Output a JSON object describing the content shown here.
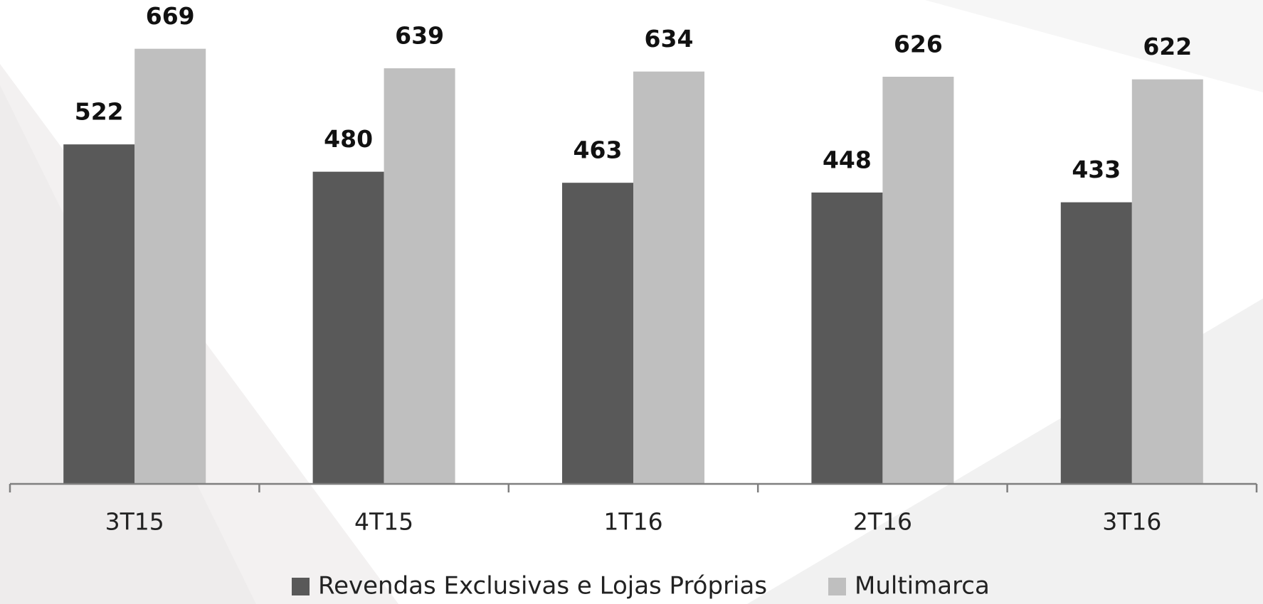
{
  "chart_data": {
    "type": "bar",
    "categories": [
      "3T15",
      "4T15",
      "1T16",
      "2T16",
      "3T16"
    ],
    "series": [
      {
        "name": "Revendas Exclusivas e Lojas Próprias",
        "color": "#595959",
        "values": [
          522,
          480,
          463,
          448,
          433
        ]
      },
      {
        "name": "Multimarca",
        "color": "#bfbfbf",
        "values": [
          669,
          639,
          634,
          626,
          622
        ]
      }
    ],
    "ylim": [
      0,
      744
    ],
    "legend": "bottom"
  }
}
